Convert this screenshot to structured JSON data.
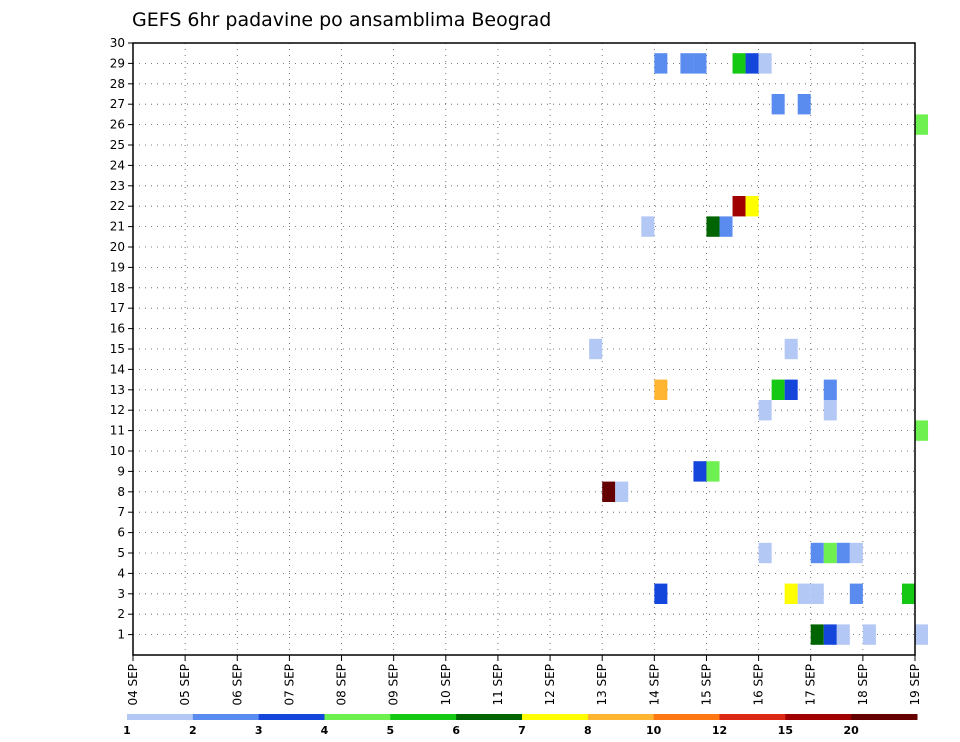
{
  "chart_data": {
    "type": "heatmap",
    "title": "GEFS 6hr padavine po ansamblima Beograd",
    "x_tick_labels": [
      "04 SEP",
      "05 SEP",
      "06 SEP",
      "07 SEP",
      "08 SEP",
      "09 SEP",
      "10 SEP",
      "11 SEP",
      "12 SEP",
      "13 SEP",
      "14 SEP",
      "15 SEP",
      "16 SEP",
      "17 SEP",
      "18 SEP",
      "19 SEP"
    ],
    "x_step_hours": 6,
    "y_tick_labels": [
      "1",
      "2",
      "3",
      "4",
      "5",
      "6",
      "7",
      "8",
      "9",
      "10",
      "11",
      "12",
      "13",
      "14",
      "15",
      "16",
      "17",
      "18",
      "19",
      "20",
      "21",
      "22",
      "23",
      "24",
      "25",
      "26",
      "27",
      "28",
      "29",
      "30"
    ],
    "ylim": [
      0,
      30
    ],
    "grid": true,
    "colorbar": {
      "labels": [
        "1",
        "2",
        "3",
        "4",
        "5",
        "6",
        "7",
        "8",
        "10",
        "12",
        "15",
        "20"
      ],
      "colors": [
        "#b3c8f5",
        "#5a8cf0",
        "#1446dc",
        "#6ef050",
        "#14c814",
        "#006400",
        "#ffff00",
        "#ffb432",
        "#ff7814",
        "#dc2814",
        "#a00000",
        "#640000"
      ]
    },
    "cells": [
      {
        "member": 1,
        "step": 52,
        "level": 5
      },
      {
        "member": 1,
        "step": 53,
        "level": 2
      },
      {
        "member": 1,
        "step": 54,
        "level": 0
      },
      {
        "member": 1,
        "step": 56,
        "level": 0
      },
      {
        "member": 1,
        "step": 60,
        "level": 0
      },
      {
        "member": 3,
        "step": 40,
        "level": 2
      },
      {
        "member": 3,
        "step": 50,
        "level": 6
      },
      {
        "member": 3,
        "step": 51,
        "level": 0
      },
      {
        "member": 3,
        "step": 52,
        "level": 0
      },
      {
        "member": 3,
        "step": 55,
        "level": 1
      },
      {
        "member": 3,
        "step": 59,
        "level": 4
      },
      {
        "member": 5,
        "step": 48,
        "level": 0
      },
      {
        "member": 5,
        "step": 52,
        "level": 1
      },
      {
        "member": 5,
        "step": 53,
        "level": 3
      },
      {
        "member": 5,
        "step": 54,
        "level": 1
      },
      {
        "member": 5,
        "step": 55,
        "level": 0
      },
      {
        "member": 8,
        "step": 36,
        "level": 11
      },
      {
        "member": 8,
        "step": 37,
        "level": 0
      },
      {
        "member": 9,
        "step": 43,
        "level": 2
      },
      {
        "member": 9,
        "step": 44,
        "level": 3
      },
      {
        "member": 11,
        "step": 60,
        "level": 3
      },
      {
        "member": 12,
        "step": 48,
        "level": 0
      },
      {
        "member": 12,
        "step": 53,
        "level": 0
      },
      {
        "member": 13,
        "step": 40,
        "level": 7
      },
      {
        "member": 13,
        "step": 49,
        "level": 4
      },
      {
        "member": 13,
        "step": 50,
        "level": 2
      },
      {
        "member": 13,
        "step": 53,
        "level": 1
      },
      {
        "member": 15,
        "step": 35,
        "level": 0
      },
      {
        "member": 15,
        "step": 50,
        "level": 0
      },
      {
        "member": 21,
        "step": 39,
        "level": 0
      },
      {
        "member": 21,
        "step": 44,
        "level": 5
      },
      {
        "member": 21,
        "step": 45,
        "level": 1
      },
      {
        "member": 22,
        "step": 46,
        "level": 10
      },
      {
        "member": 22,
        "step": 47,
        "level": 6
      },
      {
        "member": 26,
        "step": 60,
        "level": 3
      },
      {
        "member": 27,
        "step": 49,
        "level": 1
      },
      {
        "member": 27,
        "step": 51,
        "level": 1
      },
      {
        "member": 29,
        "step": 40,
        "level": 1
      },
      {
        "member": 29,
        "step": 42,
        "level": 1
      },
      {
        "member": 29,
        "step": 43,
        "level": 1
      },
      {
        "member": 29,
        "step": 46,
        "level": 4
      },
      {
        "member": 29,
        "step": 47,
        "level": 2
      },
      {
        "member": 29,
        "step": 48,
        "level": 0
      }
    ]
  }
}
